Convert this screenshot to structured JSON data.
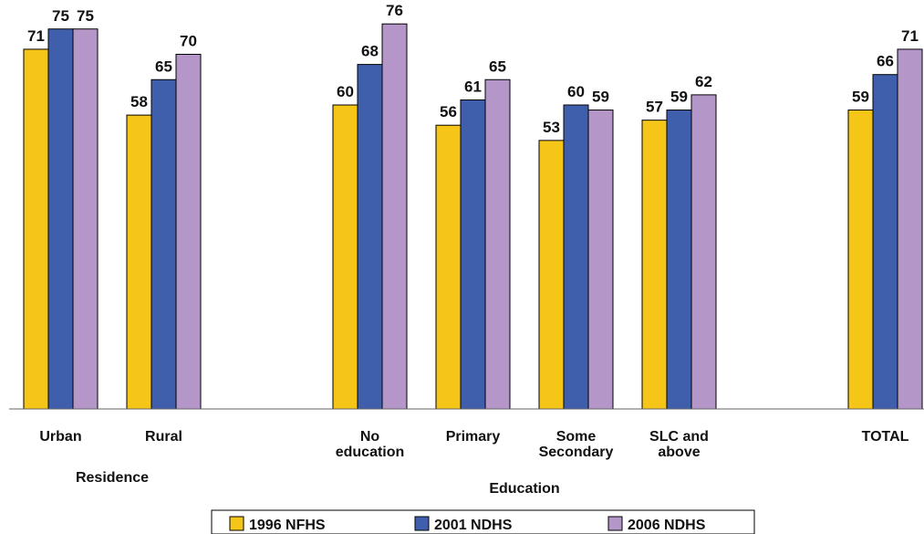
{
  "chart_data": {
    "type": "bar",
    "ylim": [
      0,
      80
    ],
    "grid": false,
    "legend_position": "bottom",
    "categories": [
      {
        "id": "urban",
        "label_lines": [
          "Urban"
        ],
        "group": "residence"
      },
      {
        "id": "rural",
        "label_lines": [
          "Rural"
        ],
        "group": "residence"
      },
      {
        "id": "no-education",
        "label_lines": [
          "No",
          "education"
        ],
        "group": "education"
      },
      {
        "id": "primary",
        "label_lines": [
          "Primary"
        ],
        "group": "education"
      },
      {
        "id": "some-secondary",
        "label_lines": [
          "Some",
          "Secondary"
        ],
        "group": "education"
      },
      {
        "id": "slc-and-above",
        "label_lines": [
          "SLC and",
          "above"
        ],
        "group": "education"
      },
      {
        "id": "total",
        "label_lines": [
          "TOTAL"
        ],
        "group": "total"
      }
    ],
    "groups": [
      {
        "id": "residence",
        "label": "Residence"
      },
      {
        "id": "education",
        "label": "Education"
      }
    ],
    "series": [
      {
        "name": "1996 NFHS",
        "color": "#F5C518",
        "values": [
          71,
          58,
          60,
          56,
          53,
          57,
          59
        ]
      },
      {
        "name": "2001 NDHS",
        "color": "#3F5FAD",
        "values": [
          75,
          65,
          68,
          61,
          60,
          59,
          66
        ]
      },
      {
        "name": "2006 NDHS",
        "color": "#B596C8",
        "values": [
          75,
          70,
          76,
          65,
          59,
          62,
          71
        ]
      }
    ]
  }
}
